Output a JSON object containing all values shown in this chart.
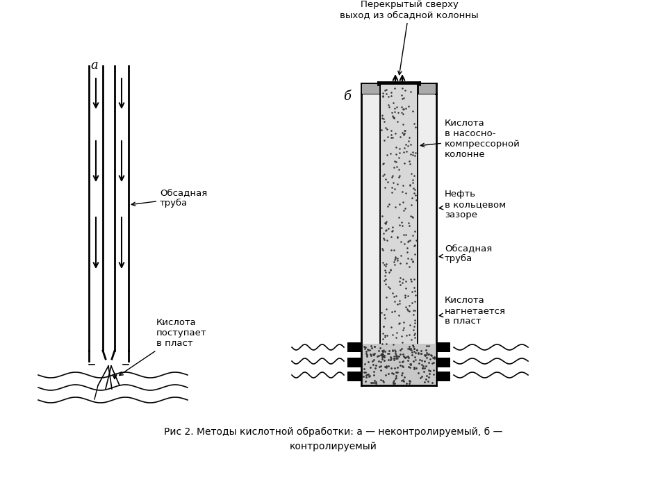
{
  "title_line1": "Рис 2. Методы кислотной обработки: а — неконтролируемый, б —",
  "title_line2": "контролируемый",
  "label_a": "а",
  "label_b": "б",
  "label_obsadnaya_a": "Обсадная\nтруба",
  "label_kislota_a": "Кислота\nпоступает\nв пласт",
  "label_top_b": "Перекрытый сверху\nвыход из обсадной колонны",
  "label_kislota_nk": "Кислота\nв насосно-\nкомпрессорной\nколонне",
  "label_neft": "Нефть\nв кольцевом\nзазоре",
  "label_obsadnaya_b": "Обсадная\nтруба",
  "label_kislota_b": "Кислота\nнагнетается\nв пласт",
  "bg_color": "#ffffff",
  "line_color": "#000000"
}
